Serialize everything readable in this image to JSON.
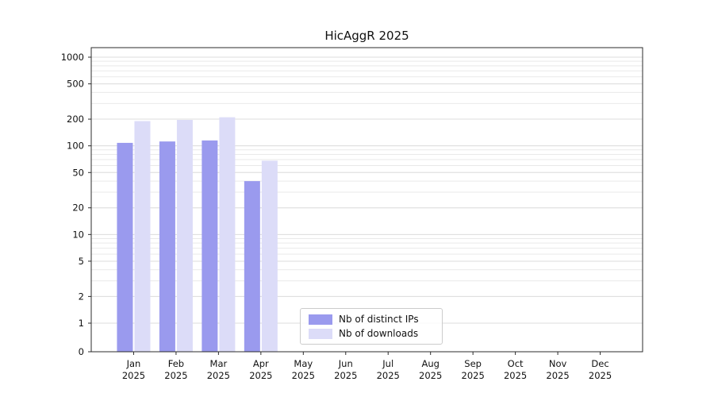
{
  "page": {
    "background": "#ffffff"
  },
  "chart_data": {
    "type": "bar",
    "title": "HicAggR 2025",
    "scale": "symlog",
    "grid": "horizontal",
    "legend_position": "lower-center",
    "categories": [
      "Jan",
      "Feb",
      "Mar",
      "Apr",
      "May",
      "Jun",
      "Jul",
      "Aug",
      "Sep",
      "Oct",
      "Nov",
      "Dec"
    ],
    "category_sublabel": "2025",
    "y_ticks": [
      0,
      1,
      2,
      5,
      10,
      20,
      50,
      100,
      200,
      500,
      1000
    ],
    "ylim": [
      0,
      1200
    ],
    "series": [
      {
        "name": "Nb of distinct IPs",
        "color": "#9a9aee",
        "values": [
          108,
          112,
          115,
          40,
          0,
          0,
          0,
          0,
          0,
          0,
          0,
          0
        ]
      },
      {
        "name": "Nb of downloads",
        "color": "#dcdcf8",
        "values": [
          190,
          196,
          210,
          68,
          0,
          0,
          0,
          0,
          0,
          0,
          0,
          0
        ]
      }
    ]
  }
}
